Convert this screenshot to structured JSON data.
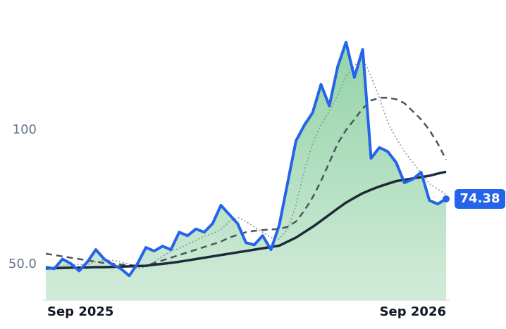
{
  "chart_data": {
    "type": "line",
    "x": [
      0,
      0.25,
      0.5,
      0.75,
      1,
      1.25,
      1.5,
      1.75,
      2,
      2.25,
      2.5,
      2.75,
      3,
      3.25,
      3.5,
      3.75,
      4,
      4.25,
      4.5,
      4.75,
      5,
      5.25,
      5.5,
      5.75,
      6,
      6.25,
      6.5,
      6.75,
      7,
      7.25,
      7.5,
      7.75,
      8,
      8.25,
      8.5,
      8.75,
      9,
      9.25,
      9.5,
      9.75,
      10,
      10.25,
      10.5,
      10.75,
      11,
      11.25,
      11.5,
      11.75,
      12
    ],
    "xlim": [
      0,
      12
    ],
    "xticks": [
      {
        "value": 0,
        "label": "Sep 2025"
      },
      {
        "value": 12,
        "label": "Sep 2026"
      }
    ],
    "ylim": [
      36.7,
      148.4
    ],
    "yticks": [
      {
        "value": 50,
        "label": "50.0"
      },
      100
    ],
    "series": [
      {
        "color": "#2563eb",
        "style": "price",
        "values": [
          49,
          48.4,
          52,
          50.3,
          47.6,
          51,
          55.5,
          52,
          50,
          48.4,
          45.8,
          50.3,
          56.3,
          55,
          56.8,
          55.5,
          62,
          60.7,
          63.2,
          62,
          65.2,
          72,
          68.6,
          65.2,
          58.1,
          57.3,
          60.7,
          55.5,
          64.7,
          80.4,
          96,
          101.8,
          106.5,
          117,
          109,
          123.6,
          132.7,
          119.6,
          130,
          89.5,
          93.5,
          92,
          88,
          80.4,
          81.7,
          84.3,
          73.8,
          72.5,
          74.38
        ]
      },
      {
        "color": "#8b93a1",
        "style": "dotted",
        "values": [
          49,
          49,
          49.5,
          50,
          50,
          50,
          51,
          51.5,
          51.5,
          51,
          50,
          48.5,
          49,
          51,
          53,
          55,
          56,
          57.5,
          59,
          60.5,
          61.5,
          63,
          66,
          67.5,
          66,
          64,
          62,
          60,
          59.5,
          63,
          72,
          85,
          95,
          102,
          107,
          113,
          120,
          124,
          127,
          120,
          112,
          103,
          97,
          92,
          88,
          84,
          80,
          78,
          76
        ]
      },
      {
        "color": "#4b5563",
        "style": "dashed",
        "values": [
          54,
          53.5,
          53,
          52.5,
          52,
          51.5,
          51,
          50.5,
          50.3,
          50,
          49.8,
          49.5,
          49.6,
          50.5,
          51.5,
          52.5,
          53.5,
          54.5,
          55.5,
          56.5,
          57.5,
          58.5,
          60,
          61,
          62,
          62.5,
          62.8,
          63,
          63.2,
          64,
          66,
          70,
          75,
          81,
          88,
          95,
          100,
          104,
          108,
          111,
          112,
          112,
          111.5,
          110,
          107,
          104,
          100,
          95,
          89
        ]
      },
      {
        "color": "#1e293b",
        "style": "solid",
        "values": [
          48.5,
          48.6,
          48.7,
          48.8,
          48.8,
          48.9,
          49,
          49,
          49.1,
          49.2,
          49.3,
          49.4,
          49.5,
          49.9,
          50.2,
          50.6,
          51,
          51.5,
          52,
          52.5,
          53,
          53.5,
          54,
          54.5,
          55,
          55.5,
          56,
          56.5,
          57,
          58.5,
          60,
          62,
          64,
          66.2,
          68.5,
          70.8,
          73,
          74.8,
          76.5,
          77.8,
          79,
          80,
          81,
          81.5,
          82,
          82.5,
          83,
          83.8,
          84.5
        ]
      }
    ]
  }
}
